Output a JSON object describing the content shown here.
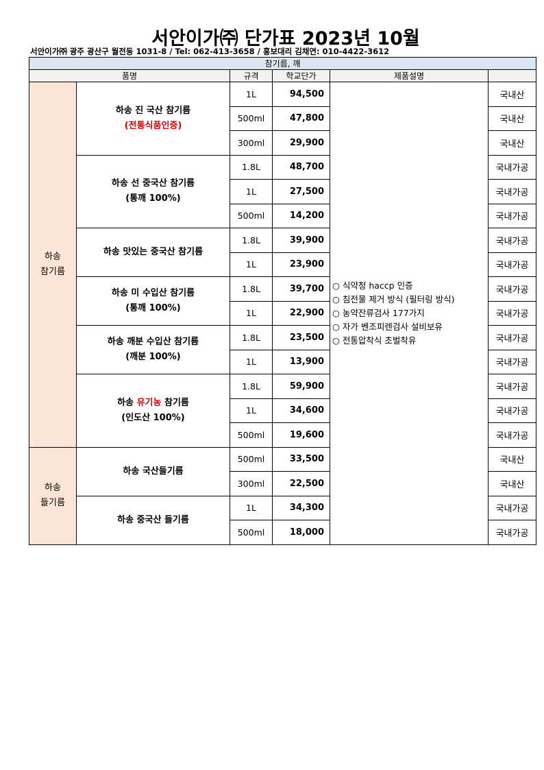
{
  "title": "서안이가㈜ 단가표 2023년 10월",
  "subtitle": "서안이가㈜ 광주 광산구 월전동 1031-8 / Tel: 062-413-3658 / 홍보대리 김채연: 010-4422-3612",
  "table": {
    "band": "참기름, 깨",
    "headers": [
      "품명",
      "규격",
      "학교단가",
      "제품설명",
      ""
    ],
    "accent_red": "#e00000",
    "group_fill": "#fce4d6",
    "description": [
      "○ 식약청 haccp 인증",
      "○ 침전물 제거 방식 (필터링 방식)",
      "○ 농약잔류검사 177가지",
      "○ 자가 벤조피렌검사 설비보유",
      "○ 전통압착식 초벌착유"
    ],
    "groups": [
      {
        "label": [
          "하송",
          "참기름"
        ],
        "products": [
          {
            "name": [
              {
                "text": "하송 진 국산 참기름"
              }
            ],
            "sub": [
              {
                "text": "(전통식품인증)",
                "red": true
              }
            ],
            "items": [
              {
                "spec": "1L",
                "price": "94,500",
                "origin": "국내산"
              },
              {
                "spec": "500ml",
                "price": "47,800",
                "origin": "국내산"
              },
              {
                "spec": "300ml",
                "price": "29,900",
                "origin": "국내산"
              }
            ]
          },
          {
            "name": [
              {
                "text": "하송 선 중국산 참기름"
              }
            ],
            "sub": [
              {
                "text": "(통깨 100%)"
              }
            ],
            "items": [
              {
                "spec": "1.8L",
                "price": "48,700",
                "origin": "국내가공"
              },
              {
                "spec": "1L",
                "price": "27,500",
                "origin": "국내가공"
              },
              {
                "spec": "500ml",
                "price": "14,200",
                "origin": "국내가공"
              }
            ]
          },
          {
            "name": [
              {
                "text": "하송 맛있는 중국산 참기름"
              }
            ],
            "sub": [],
            "items": [
              {
                "spec": "1.8L",
                "price": "39,900",
                "origin": "국내가공"
              },
              {
                "spec": "1L",
                "price": "23,900",
                "origin": "국내가공"
              }
            ]
          },
          {
            "name": [
              {
                "text": "하송 미 수입산 참기름"
              }
            ],
            "sub": [
              {
                "text": "(통깨 100%)"
              }
            ],
            "items": [
              {
                "spec": "1.8L",
                "price": "39,700",
                "origin": "국내가공"
              },
              {
                "spec": "1L",
                "price": "22,900",
                "origin": "국내가공"
              }
            ]
          },
          {
            "name": [
              {
                "text": "하송 깨분 수입산 참기름"
              }
            ],
            "sub": [
              {
                "text": "(깨분 100%)"
              }
            ],
            "items": [
              {
                "spec": "1.8L",
                "price": "23,500",
                "origin": "국내가공"
              },
              {
                "spec": "1L",
                "price": "13,900",
                "origin": "국내가공"
              }
            ]
          },
          {
            "name": [
              {
                "text": "하송 "
              },
              {
                "text": "유기농",
                "red": true
              },
              {
                "text": " 참기름"
              }
            ],
            "sub": [
              {
                "text": "(인도산 100%)"
              }
            ],
            "items": [
              {
                "spec": "1.8L",
                "price": "59,900",
                "origin": "국내가공"
              },
              {
                "spec": "1L",
                "price": "34,600",
                "origin": "국내가공"
              },
              {
                "spec": "500ml",
                "price": "19,600",
                "origin": "국내가공"
              }
            ]
          }
        ]
      },
      {
        "label": [
          "하송",
          "들기름"
        ],
        "products": [
          {
            "name": [
              {
                "text": "하송 국산들기름"
              }
            ],
            "sub": [],
            "items": [
              {
                "spec": "500ml",
                "price": "33,500",
                "origin": "국내산"
              },
              {
                "spec": "300ml",
                "price": "22,500",
                "origin": "국내산"
              }
            ]
          },
          {
            "name": [
              {
                "text": "하송 중국산 들기름"
              }
            ],
            "sub": [],
            "items": [
              {
                "spec": "1L",
                "price": "34,300",
                "origin": "국내가공"
              },
              {
                "spec": "500ml",
                "price": "18,000",
                "origin": "국내가공"
              }
            ]
          }
        ]
      }
    ]
  }
}
